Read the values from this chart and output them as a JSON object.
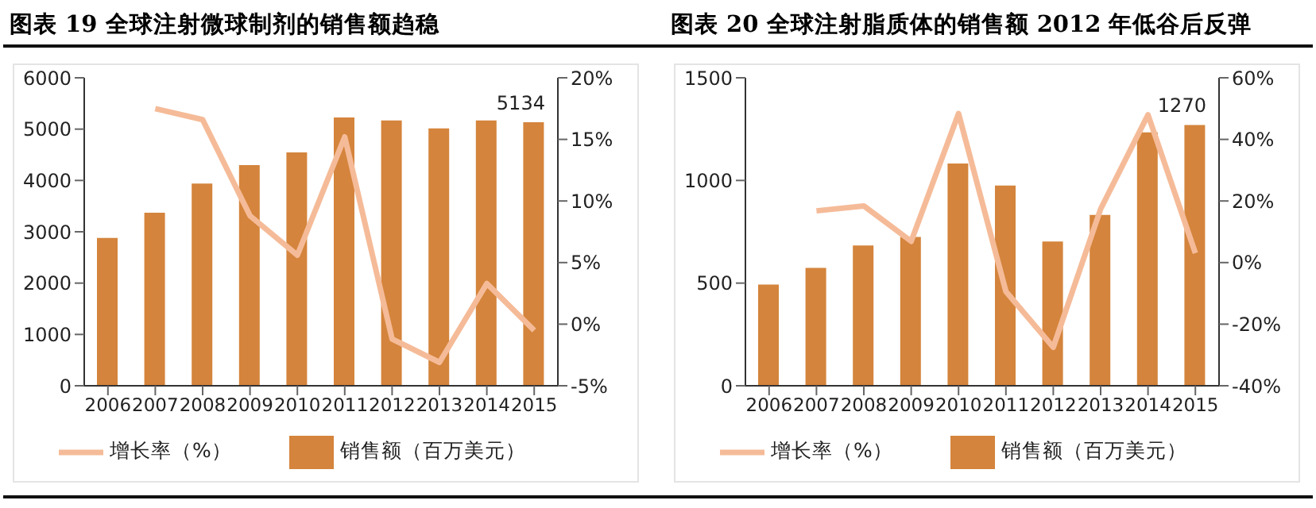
{
  "chart_data": [
    {
      "type": "bar",
      "title": "图表 19 全球注射微球制剂的销售额趋稳",
      "categories": [
        "2006",
        "2007",
        "2008",
        "2009",
        "2010",
        "2011",
        "2012",
        "2013",
        "2014",
        "2015"
      ],
      "series": [
        {
          "name": "销售额（百万美元）",
          "color": "#d4843c",
          "values": [
            2880,
            3370,
            3940,
            4300,
            4545,
            5225,
            5170,
            5015,
            5170,
            5134
          ],
          "value_labels": [
            null,
            null,
            null,
            null,
            null,
            null,
            null,
            null,
            null,
            "5134"
          ]
        },
        {
          "name": "增长率（%）",
          "type": "line",
          "axis": "y2",
          "color": "#f5bb98",
          "values": [
            null,
            17.5,
            16.6,
            8.8,
            5.6,
            15.2,
            -1.2,
            -3.1,
            3.3,
            -0.5
          ]
        }
      ],
      "ylim": [
        0,
        6000
      ],
      "yticks": [
        0,
        1000,
        2000,
        3000,
        4000,
        5000,
        6000
      ],
      "y2lim": [
        -5,
        20
      ],
      "y2ticks": [
        {
          "value": -5,
          "label": "-5%"
        },
        {
          "value": 0,
          "label": "0%"
        },
        {
          "value": 5,
          "label": "5%"
        },
        {
          "value": 10,
          "label": "10%"
        },
        {
          "value": 15,
          "label": "15%"
        },
        {
          "value": 20,
          "label": "20%"
        }
      ],
      "legend": "bottom",
      "grid": false,
      "marker": "none"
    },
    {
      "type": "bar",
      "title": "图表 20 全球注射脂质体的销售额 2012 年低谷后反弹",
      "categories": [
        "2006",
        "2007",
        "2008",
        "2009",
        "2010",
        "2011",
        "2012",
        "2013",
        "2014",
        "2015"
      ],
      "series": [
        {
          "name": "销售额（百万美元）",
          "color": "#d4843c",
          "values": [
            493,
            574,
            683,
            725,
            1082,
            975,
            703,
            832,
            1234,
            1270
          ],
          "value_labels": [
            null,
            null,
            null,
            null,
            null,
            null,
            null,
            null,
            null,
            "1270"
          ]
        },
        {
          "name": "增长率（%）",
          "type": "line",
          "axis": "y2",
          "color": "#f5bb98",
          "values": [
            null,
            16.8,
            18.4,
            6.9,
            48.4,
            -9.4,
            -27.5,
            17.4,
            48,
            3.1
          ]
        }
      ],
      "ylim": [
        0,
        1500
      ],
      "yticks": [
        0,
        500,
        1000,
        1500
      ],
      "y2lim": [
        -40,
        60
      ],
      "y2ticks": [
        {
          "value": -40,
          "label": "-40%"
        },
        {
          "value": -20,
          "label": "-20%"
        },
        {
          "value": 0,
          "label": "0%"
        },
        {
          "value": 20,
          "label": "20%"
        },
        {
          "value": 40,
          "label": "40%"
        },
        {
          "value": 60,
          "label": "60%"
        }
      ],
      "legend": "bottom",
      "grid": false,
      "marker": "none"
    }
  ]
}
